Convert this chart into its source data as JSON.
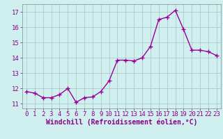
{
  "x": [
    0,
    1,
    2,
    3,
    4,
    5,
    6,
    7,
    8,
    9,
    10,
    11,
    12,
    13,
    14,
    15,
    16,
    17,
    18,
    19,
    20,
    21,
    22,
    23
  ],
  "y": [
    11.8,
    11.7,
    11.4,
    11.4,
    11.6,
    12.0,
    11.1,
    11.4,
    11.45,
    11.8,
    12.5,
    13.85,
    13.85,
    13.8,
    14.0,
    14.75,
    16.5,
    16.65,
    17.1,
    15.85,
    14.5,
    14.5,
    14.4,
    14.15
  ],
  "line_color": "#990099",
  "marker": "+",
  "marker_size": 4,
  "bg_color": "#d0f0f0",
  "grid_color": "#b0c8c8",
  "xlabel": "Windchill (Refroidissement éolien,°C)",
  "ylim": [
    10.7,
    17.5
  ],
  "xlim": [
    -0.5,
    23.5
  ],
  "yticks": [
    11,
    12,
    13,
    14,
    15,
    16,
    17
  ],
  "xticks": [
    0,
    1,
    2,
    3,
    4,
    5,
    6,
    7,
    8,
    9,
    10,
    11,
    12,
    13,
    14,
    15,
    16,
    17,
    18,
    19,
    20,
    21,
    22,
    23
  ],
  "tick_labelsize": 6.5,
  "xlabel_fontsize": 7,
  "line_width": 1.0,
  "label_color": "#880088"
}
